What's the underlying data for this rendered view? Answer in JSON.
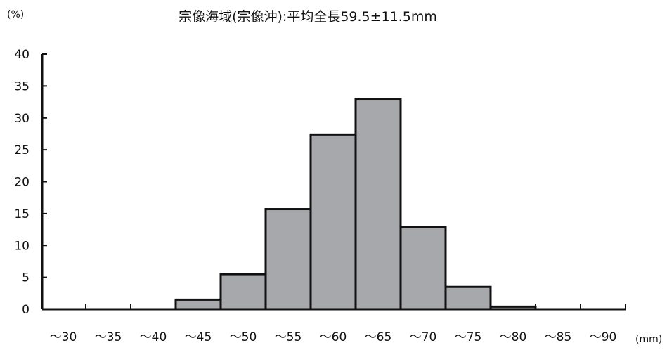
{
  "chart_data": {
    "type": "bar",
    "title": "宗像海域(宗像沖):平均全長59.5±11.5mm",
    "ylabel": "(%)",
    "xlabel": "(mm)",
    "ylim": [
      0,
      40
    ],
    "yticks": [
      0,
      5,
      10,
      15,
      20,
      25,
      30,
      35,
      40
    ],
    "categories": [
      "～30",
      "～35",
      "～40",
      "～45",
      "～50",
      "～55",
      "～60",
      "～65",
      "～70",
      "～75",
      "～80",
      "～85",
      "～90"
    ],
    "values": [
      0,
      0,
      0,
      1.5,
      5.5,
      15.7,
      27.4,
      33.0,
      12.9,
      3.5,
      0.4,
      0,
      0
    ],
    "bar_color": "#a7a8ab",
    "edge_color": "#111111",
    "grid": false,
    "legend": "none"
  }
}
